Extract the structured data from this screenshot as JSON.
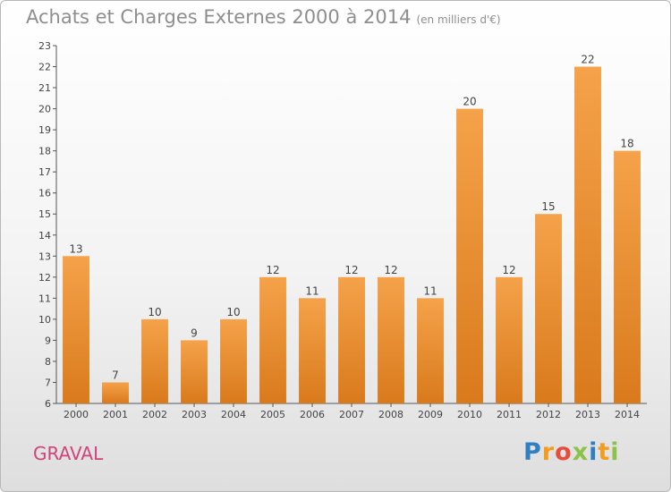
{
  "chart_data": {
    "type": "bar",
    "title": "Achats et Charges Externes 2000 à 2014",
    "subtitle": "(en milliers d'€)",
    "categories": [
      "2000",
      "2001",
      "2002",
      "2003",
      "2004",
      "2005",
      "2006",
      "2007",
      "2008",
      "2009",
      "2010",
      "2011",
      "2012",
      "2013",
      "2014"
    ],
    "values": [
      13,
      7,
      10,
      9,
      10,
      12,
      11,
      12,
      12,
      11,
      20,
      12,
      15,
      22,
      18
    ],
    "ylim": [
      6,
      23
    ],
    "yticks": [
      6,
      7,
      8,
      9,
      10,
      11,
      12,
      13,
      14,
      15,
      16,
      17,
      18,
      19,
      20,
      21,
      22,
      23
    ],
    "grid": false,
    "bar_color_top": "#f5a24a",
    "bar_color_bottom": "#d97a1c"
  },
  "footer": {
    "commune": "GRAVAL",
    "logo": [
      "P",
      "r",
      "o",
      "x",
      "i",
      "t",
      "i"
    ],
    "logo_colors": [
      "#2f7fc1",
      "#f39c1e",
      "#e74c3c",
      "#8bc34a",
      "#2f7fc1",
      "#f39c1e",
      "#8bc34a"
    ]
  }
}
